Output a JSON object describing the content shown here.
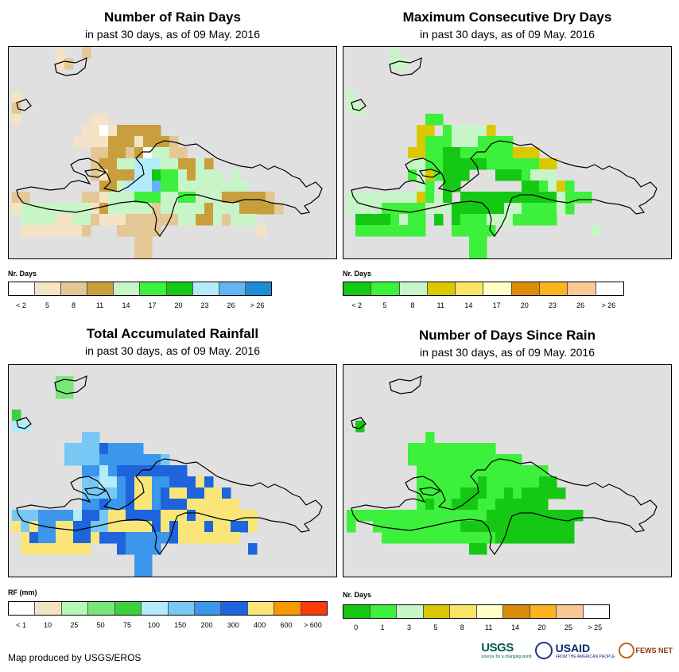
{
  "subtitle": "in past 30 days, as of 09 May. 2016",
  "credit": "Map produced by USGS/EROS",
  "logos": {
    "usgs": "USGS",
    "usgs_tagline": "science for a changing world",
    "usaid": "USAID",
    "usaid_tagline": "FROM THE AMERICAN PEOPLE",
    "fews": "FEWS NET"
  },
  "panels": [
    {
      "id": "rain-days",
      "title": "Number of Rain Days",
      "subtitle": "in past 30 days, as of 09 May. 2016",
      "legend_title": "Nr. Days",
      "legend_colors": [
        "#ffffff",
        "#f5e3c6",
        "#e3c794",
        "#c89f3c",
        "#c8f5c8",
        "#3cf03c",
        "#14c814",
        "#b4ebfa",
        "#64b4f5",
        "#1e8cd2"
      ],
      "legend_labels": [
        "< 2",
        "5",
        "8",
        "11",
        "14",
        "17",
        "20",
        "23",
        "26",
        "> 26"
      ],
      "grid": [
        "00000200300000000000000000000000000000",
        "00000230000000000000000000000000000000",
        "00000000000000000000000000000000000000",
        "00000000000000000000000000000000000000",
        "20000000000000000000000000000000000000",
        "30000000000000000000000000000000000000",
        "20000000022000000000000000000000000000",
        "00000000221244444000000000000000000000",
        "00000002222444244430000000000000000000",
        "00000000033443415533000000000000000000",
        "00000000034455888554454000000000000000",
        "00000000032444887665455505000000000000",
        "00000000004458889665555555500000000000",
        "33000000332555666556655544444300000000",
        "25555555524555553555554555444430000000",
        "05555225532223333335544535550000000000",
        "02222222300033333000000000002000000000",
        "00000000000000330000000000000000000000",
        "00000000000000330000000000000000000000"
      ]
    },
    {
      "id": "dry-days",
      "title": "Maximum Consecutive Dry Days",
      "subtitle": "in past 30 days, as of 09 May. 2016",
      "legend_title": "Nr. Days",
      "legend_colors": [
        "#14c814",
        "#3cf03c",
        "#c8f5c8",
        "#dcc800",
        "#fae664",
        "#ffffc8",
        "#dc8c0a",
        "#fab41e",
        "#fac896",
        "#ffffff"
      ],
      "legend_labels": [
        "< 2",
        "5",
        "8",
        "11",
        "14",
        "17",
        "20",
        "23",
        "26",
        "> 26"
      ],
      "grid": [
        "00000300000000000000000000000000000000",
        "00000330000000000000000000000000000000",
        "00000000000000000000000000000000000000",
        "00000000000000000000000000000000000000",
        "30000000000000000000000000000000000000",
        "33000000000000000000000000000000000000",
        "00000000022000000000000000000000000000",
        "00000000440233334000000000000000000000",
        "00000000422233322220000000000000000000",
        "00000004422112222224440000000000000000",
        "00000003322111112222224400000000000000",
        "00000002342111000111233300000000000000",
        "00000000320110000000112342000000000000",
        "33333333423101111111111132220000000000",
        "33332222233311111133222232000000000000",
        "01111232201012223332222200000000000000",
        "02222222200022222000000000003000000000",
        "00000000000000220000000000000000000000",
        "00000000000000220000000000000000000000"
      ]
    },
    {
      "id": "rainfall",
      "title": "Total Accumulated Rainfall",
      "subtitle": "in past 30 days, as of 09 May. 2016",
      "legend_title": "RF (mm)",
      "legend_colors": [
        "#ffffff",
        "#f5e3c6",
        "#b4fab4",
        "#78e678",
        "#3cd23c",
        "#b4ebfa",
        "#78c8f5",
        "#3c96eb",
        "#1e64dc",
        "#fae678",
        "#fa9600",
        "#fa3c0a"
      ],
      "legend_labels": [
        "< 1",
        "10",
        "25",
        "50",
        "75",
        "100",
        "150",
        "200",
        "300",
        "400",
        "600",
        "> 600"
      ],
      "grid": [
        "00000000000000000000000000000000000000",
        "00000440000000000000000000000000000000",
        "00000440000000000000000000000000000000",
        "00000000000000000000000000000000000000",
        "50000000000000000000000000000000000000",
        "66000000000000000000000000000000000000",
        "00000000770000000000000000000000000000",
        "00000077779888800000000000000000000000",
        "00000077778888888700000000000000000000",
        "00000000886899999999000000000000000000",
        "00000000776689aa88999a9000000000000000",
        "00000000777789aa89aa99aa90000000000000",
        "00000000889889aa8999aaaaaa000000000000",
        "77788886997aa9999aaa9aaaaaaa0000000000",
        "a7a88aa9977aaaaa9a9aaa9aa99a0000000000",
        "0a988aa99a999888889aaaaaaa000000000000",
        "0aaaaaaaa0009888800000000009000000000",
        "00000000000000880000000000000000000000",
        "00000000000000880000000000000000000000"
      ]
    },
    {
      "id": "since-rain",
      "title": "Number of Days Since Rain",
      "subtitle": "in past 30 days, as of 09 May. 2016",
      "legend_title": "Nr. Days",
      "legend_colors": [
        "#14c814",
        "#3cf03c",
        "#c8f5c8",
        "#dcc800",
        "#fae664",
        "#ffffc8",
        "#dc8c0a",
        "#fab41e",
        "#fac896",
        "#ffffff"
      ],
      "legend_labels": [
        "0",
        "1",
        "3",
        "5",
        "8",
        "11",
        "14",
        "20",
        "25",
        "> 25"
      ],
      "grid": [
        "00000000000000000000000000000000000000",
        "00000000000000000000000000000000000000",
        "00000000000000000000000000000000000000",
        "00000000000000000000000000000000000000",
        "00000000000000000000000000000000000000",
        "01000000000000000000000000000000000000",
        "00000000020000000000000000000000000000",
        "00000002222222222000000000000000000000",
        "00000002222222222222000000000000000000",
        "00000000222222222222222000000000000000",
        "00000000222222212222221100000000000000",
        "00000000222221112212111110000000000000",
        "00000000212211122111111000000000000000",
        "22222222222222221111111111100000000000",
        "20022222222221111111111111000000000000",
        "00002222222222222111111111000000000000",
        "00000000000000110000000000000000000000",
        "00000000000000000000000000000000000000",
        "00000000000000000000000000000000000000"
      ]
    }
  ]
}
